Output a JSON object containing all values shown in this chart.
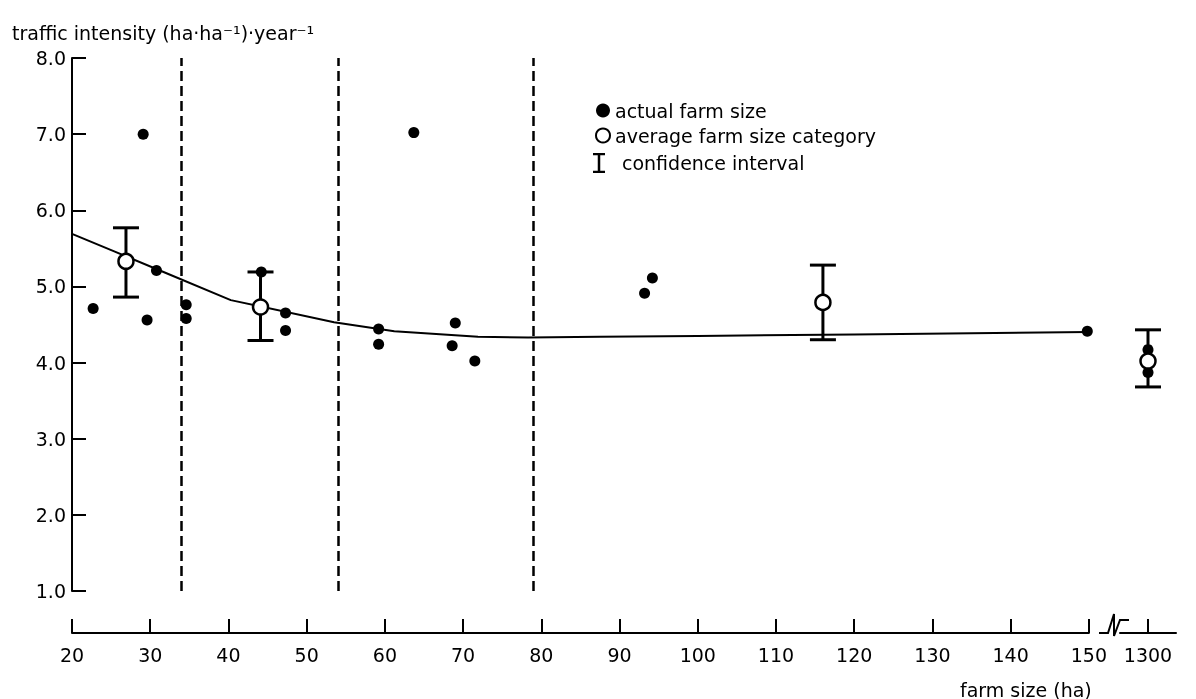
{
  "chart_data": [
    {
      "type": "scatter",
      "xlabel": "farm size (ha)",
      "ylabel": "traffic intensity (ha·ha⁻¹)·year⁻¹",
      "xlim": [
        20,
        150
      ],
      "xticks": [
        20,
        30,
        40,
        50,
        60,
        70,
        80,
        90,
        100,
        110,
        120,
        130,
        140,
        150
      ],
      "ylim": [
        1,
        8
      ],
      "yticks": [
        {
          "value": 1,
          "label": "1.0"
        },
        {
          "value": 2,
          "label": "2.0"
        },
        {
          "value": 3,
          "label": "3.0"
        },
        {
          "value": 4,
          "label": "4.0"
        },
        {
          "value": 5,
          "label": "5.0"
        },
        {
          "value": 6,
          "label": "6.0"
        },
        {
          "value": 7,
          "label": "7.0"
        },
        {
          "value": 8,
          "label": "8.0"
        }
      ],
      "grid": false,
      "legend": "top right",
      "annotations": [
        "confidence interval"
      ],
      "ref_lines": [
        {
          "axis": "x",
          "value": 34,
          "color": "#000000",
          "line_style": "dashed"
        },
        {
          "axis": "x",
          "value": 54,
          "color": "#000000",
          "line_style": "dashed"
        },
        {
          "axis": "x",
          "value": 79,
          "color": "#000000",
          "line_style": "dashed"
        }
      ],
      "series": [
        {
          "name": "actual farm size",
          "type": "scatter",
          "marker": "circle",
          "color": "#000000",
          "x": [
            22.7,
            29.1,
            29.6,
            30.8,
            34.6,
            34.6,
            44.2,
            47.3,
            47.3,
            59.2,
            59.2,
            63.7,
            69.0,
            68.6,
            71.5,
            93.2,
            94.2,
            149.8
          ],
          "values": [
            4.71,
            7.0,
            4.56,
            5.21,
            4.76,
            4.58,
            5.19,
            4.65,
            4.42,
            4.44,
            4.24,
            7.02,
            4.52,
            4.22,
            4.02,
            4.91,
            5.11,
            4.41
          ]
        },
        {
          "name": "average farm size category",
          "type": "scatter",
          "marker": "circle",
          "color": "#ffffff",
          "x": [
            26.9,
            44.1,
            116
          ],
          "values": [
            5.33,
            4.73,
            4.79
          ],
          "errors": [
            [
              4.86,
              5.77
            ],
            [
              4.29,
              5.19
            ],
            [
              4.3,
              5.28
            ]
          ]
        },
        {
          "type": "line",
          "marker": "none",
          "line_style": "solid",
          "color": "#000000",
          "x": [
            20,
            25.4,
            31.7,
            40.3,
            53.5,
            61.2,
            71.9,
            78.3,
            87.5,
            100,
            120,
            150
          ],
          "values": [
            5.69,
            5.46,
            5.19,
            4.82,
            4.53,
            4.41,
            4.34,
            4.33,
            4.34,
            4.35,
            4.37,
            4.4
          ]
        }
      ]
    },
    {
      "type": "scatter",
      "categories": [
        "1300"
      ],
      "ylim": [
        1,
        8
      ],
      "tick_labels": "x",
      "series": [
        {
          "type": "scatter",
          "marker": "circle",
          "color": "#000000",
          "values": [
            4.17
          ]
        },
        {
          "type": "scatter",
          "marker": "circle",
          "color": "#000000",
          "values": [
            3.87
          ]
        },
        {
          "type": "scatter",
          "marker": "circle",
          "color": "#ffffff",
          "values": [
            4.02
          ],
          "errors": [
            [
              3.68,
              4.43
            ]
          ]
        }
      ]
    }
  ]
}
